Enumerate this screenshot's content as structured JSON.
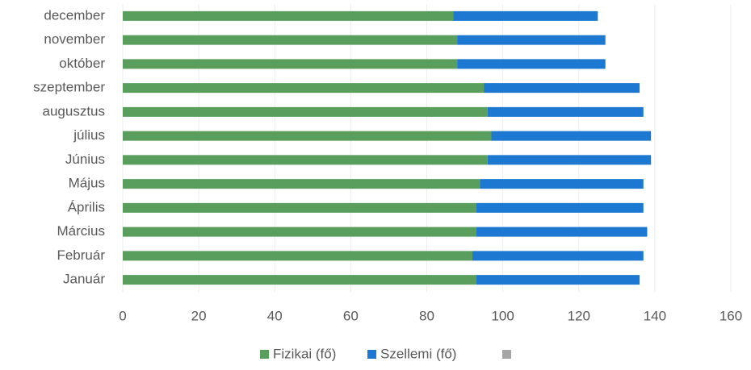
{
  "chart_data": {
    "type": "stacked-barh",
    "categories": [
      "Január",
      "Február",
      "Március",
      "Április",
      "Május",
      "Június",
      "július",
      "augusztus",
      "szeptember",
      "október",
      "november",
      "december"
    ],
    "series": [
      {
        "name": "Fizikai (fő)",
        "color": "#5a9e5e",
        "values": [
          93,
          92,
          93,
          93,
          94,
          96,
          97,
          96,
          95,
          88,
          88,
          87
        ]
      },
      {
        "name": "Szellemi (fő)",
        "color": "#1c78d0",
        "values": [
          43,
          45,
          45,
          44,
          43,
          43,
          42,
          41,
          41,
          39,
          39,
          38
        ]
      }
    ],
    "xlim": [
      0,
      160
    ],
    "xticks": [
      0,
      20,
      40,
      60,
      80,
      100,
      120,
      140,
      160
    ],
    "grid": true
  }
}
